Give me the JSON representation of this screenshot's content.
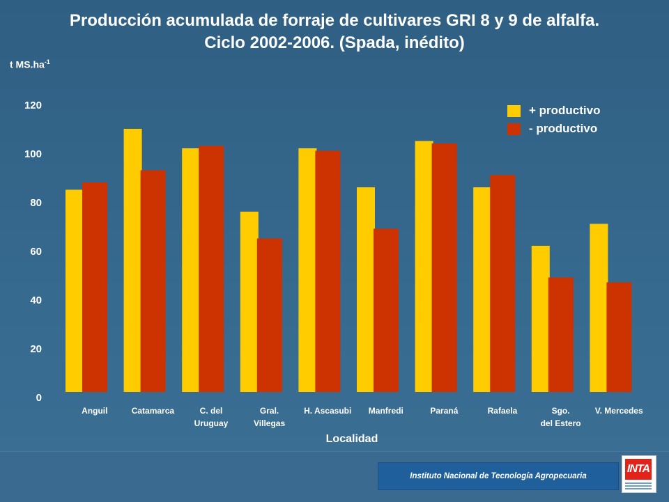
{
  "chart_data": {
    "type": "bar",
    "title_line1": "Producción acumulada de forraje de cultivares  GRI 8 y 9 de alfalfa.",
    "title_line2": "Ciclo 2002-2006. (Spada, inédito)",
    "ylabel": "t MS.ha",
    "ylabel_exp": "-1",
    "xlabel": "Localidad",
    "ylim": [
      0,
      120
    ],
    "yticks": [
      "0",
      "20",
      "40",
      "60",
      "80",
      "100",
      "120"
    ],
    "categories": [
      [
        "Anguil"
      ],
      [
        "Catamarca"
      ],
      [
        "C. del",
        "Uruguay"
      ],
      [
        "Gral.",
        "Villegas"
      ],
      [
        "H. Ascasubi"
      ],
      [
        "Manfredi"
      ],
      [
        "Paraná"
      ],
      [
        "Rafaela"
      ],
      [
        "Sgo.",
        "del Estero"
      ],
      [
        "V. Mercedes"
      ]
    ],
    "series": [
      {
        "name": "+ productivo",
        "color": "#ffcc00",
        "values": [
          83,
          108,
          100,
          74,
          100,
          84,
          103,
          84,
          60,
          69
        ]
      },
      {
        "name": "- productivo",
        "color": "#cc3300",
        "values": [
          86,
          91,
          101,
          63,
          99,
          67,
          102,
          89,
          47,
          45
        ]
      }
    ],
    "legend_position": "top-right",
    "grid": false
  },
  "footer": {
    "institution": "Instituto Nacional de Tecnología Agropecuaria",
    "logo_text": "INTA"
  }
}
